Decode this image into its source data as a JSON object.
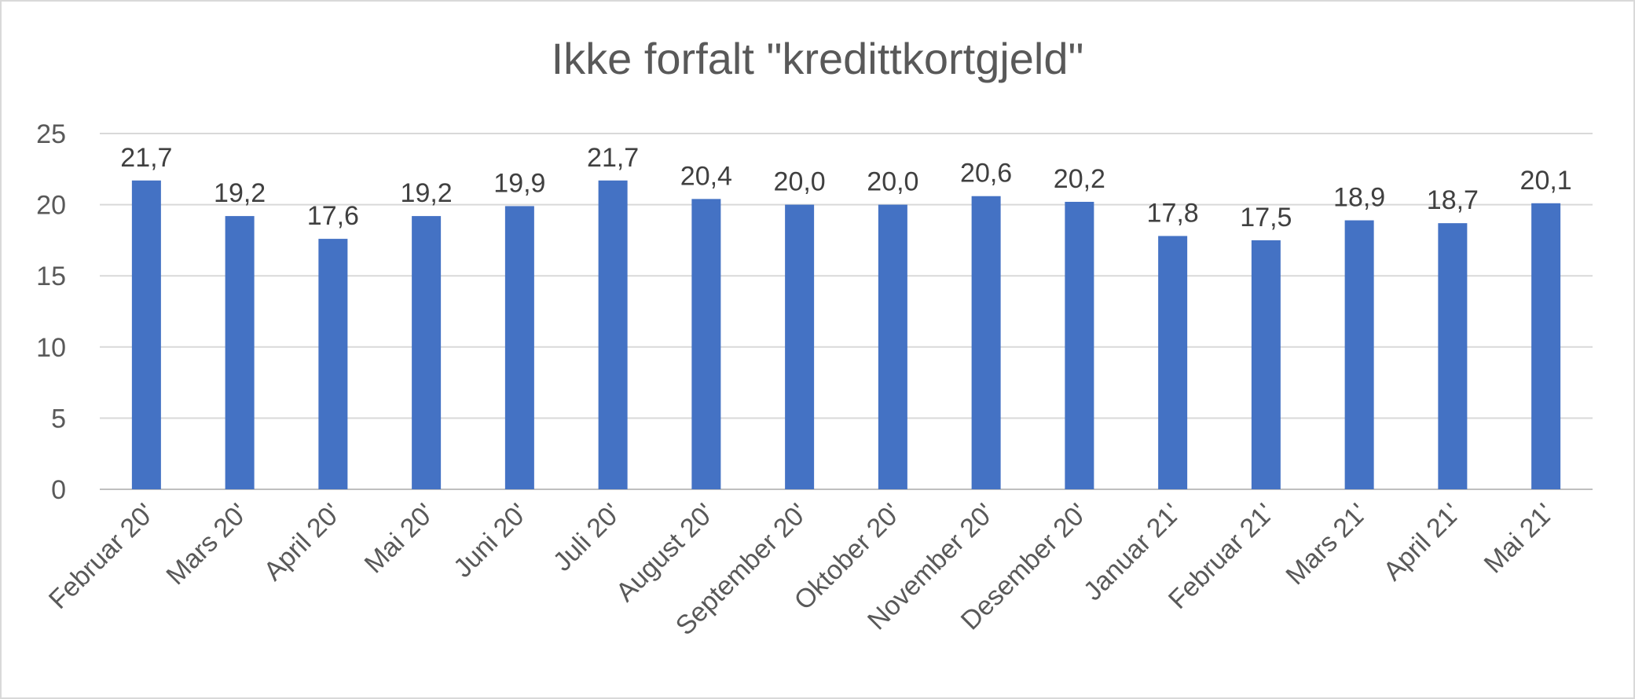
{
  "chart_data": {
    "type": "bar",
    "title": "Ikke forfalt \"kredittkortgjeld\"",
    "xlabel": "",
    "ylabel": "",
    "ylim": [
      0,
      25
    ],
    "yticks": [
      "0",
      "5",
      "10",
      "15",
      "20",
      "25"
    ],
    "grid": true,
    "legend": "none",
    "bar_color": "#4472c4",
    "categories": [
      "Februar 20'",
      "Mars 20'",
      "April 20'",
      "Mai 20'",
      "Juni 20'",
      "Juli 20'",
      "August 20'",
      "September 20'",
      "Oktober 20'",
      "November 20'",
      "Desember 20'",
      "Januar 21'",
      "Februar 21'",
      "Mars 21'",
      "April 21'",
      "Mai 21'"
    ],
    "values": [
      21.7,
      19.2,
      17.6,
      19.2,
      19.9,
      21.7,
      20.4,
      20.0,
      20.0,
      20.6,
      20.2,
      17.8,
      17.5,
      18.9,
      18.7,
      20.1
    ],
    "data_labels": [
      "21,7",
      "19,2",
      "17,6",
      "19,2",
      "19,9",
      "21,7",
      "20,4",
      "20,0",
      "20,0",
      "20,6",
      "20,2",
      "17,8",
      "17,5",
      "18,9",
      "18,7",
      "20,1"
    ]
  }
}
